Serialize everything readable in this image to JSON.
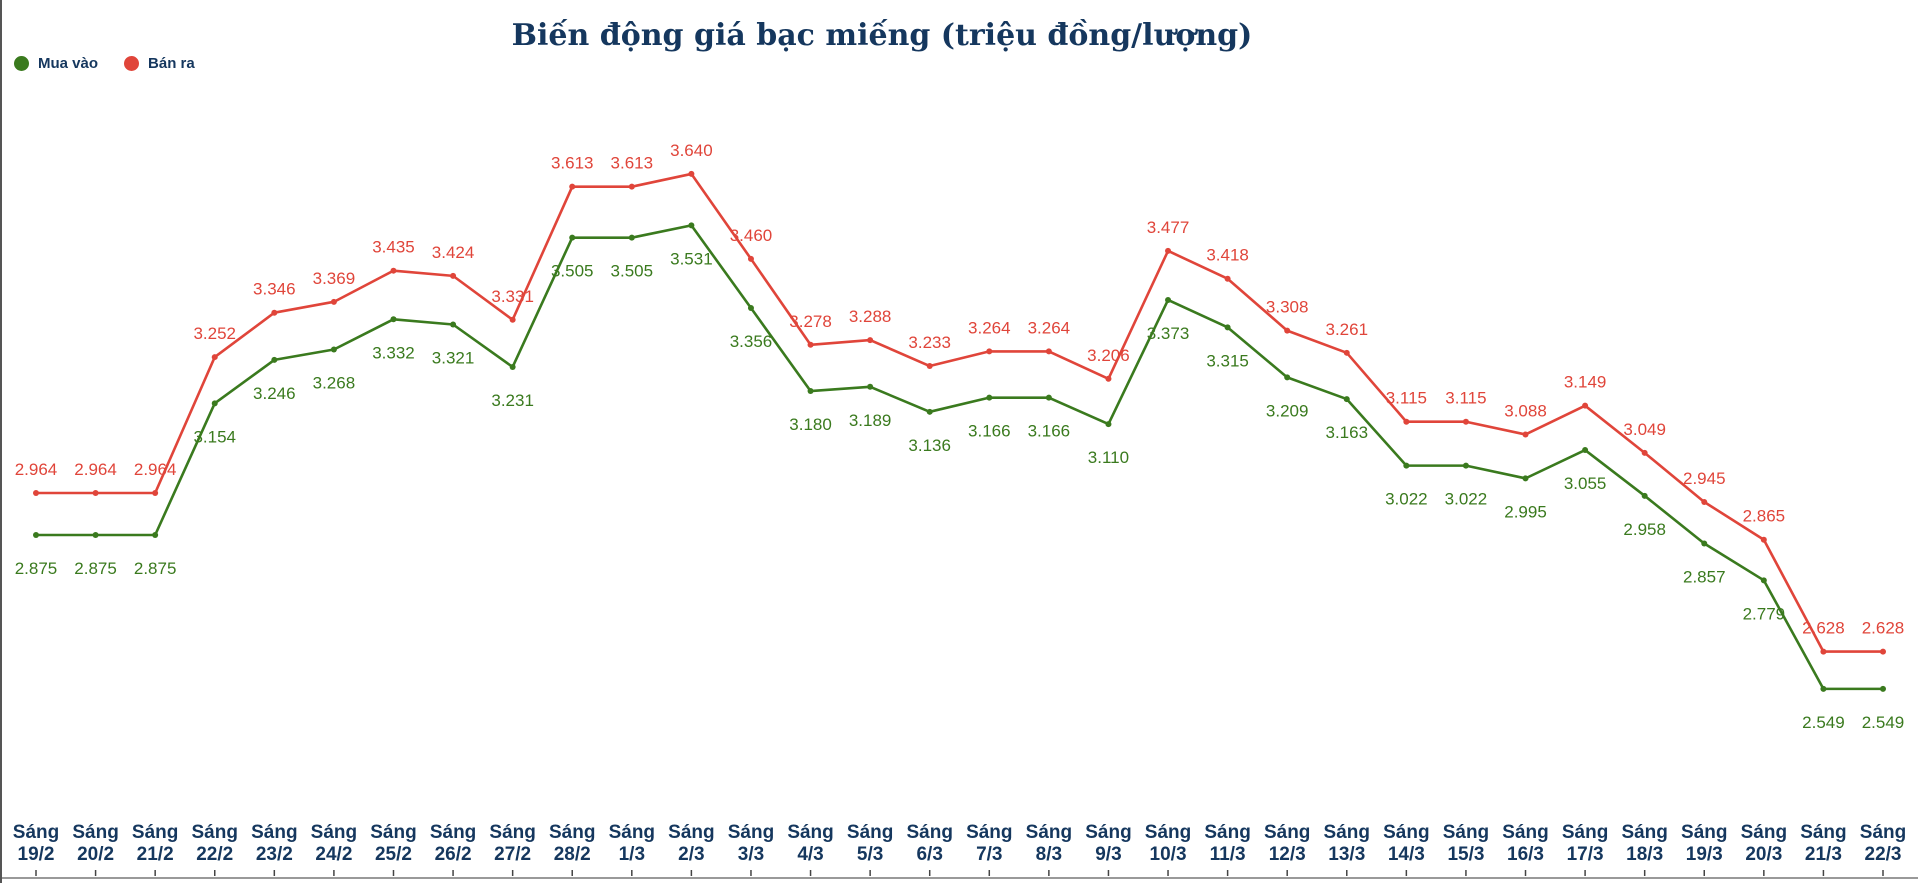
{
  "chart_data": {
    "type": "line",
    "title": "Biến động giá bạc miếng (triệu đồng/lượng)",
    "legend_position": "top-left",
    "grid": false,
    "categories": [
      "Sáng 19/2",
      "Sáng 20/2",
      "Sáng 21/2",
      "Sáng 22/2",
      "Sáng 23/2",
      "Sáng 24/2",
      "Sáng 25/2",
      "Sáng 26/2",
      "Sáng 27/2",
      "Sáng 28/2",
      "Sáng 1/3",
      "Sáng 2/3",
      "Sáng 3/3",
      "Sáng 4/3",
      "Sáng 5/3",
      "Sáng 6/3",
      "Sáng 7/3",
      "Sáng 8/3",
      "Sáng 9/3",
      "Sáng 10/3",
      "Sáng 11/3",
      "Sáng 12/3",
      "Sáng 13/3",
      "Sáng 14/3",
      "Sáng 15/3",
      "Sáng 16/3",
      "Sáng 17/3",
      "Sáng 18/3",
      "Sáng 19/3",
      "Sáng 20/3",
      "Sáng 21/3",
      "Sáng 22/3"
    ],
    "series": [
      {
        "name": "Mua vào",
        "color": "#3a7a1e",
        "values": [
          2.875,
          2.875,
          2.875,
          3.154,
          3.246,
          3.268,
          3.332,
          3.321,
          3.231,
          3.505,
          3.505,
          3.531,
          3.356,
          3.18,
          3.189,
          3.136,
          3.166,
          3.166,
          3.11,
          3.373,
          3.315,
          3.209,
          3.163,
          3.022,
          3.022,
          2.995,
          3.055,
          2.958,
          2.857,
          2.779,
          2.549,
          2.549
        ]
      },
      {
        "name": "Bán ra",
        "color": "#e0453a",
        "values": [
          2.964,
          2.964,
          2.964,
          3.252,
          3.346,
          3.369,
          3.435,
          3.424,
          3.331,
          3.613,
          3.613,
          3.64,
          3.46,
          3.278,
          3.288,
          3.233,
          3.264,
          3.264,
          3.206,
          3.477,
          3.418,
          3.308,
          3.261,
          3.115,
          3.115,
          3.088,
          3.149,
          3.049,
          2.945,
          2.865,
          2.628,
          2.628
        ]
      }
    ]
  }
}
